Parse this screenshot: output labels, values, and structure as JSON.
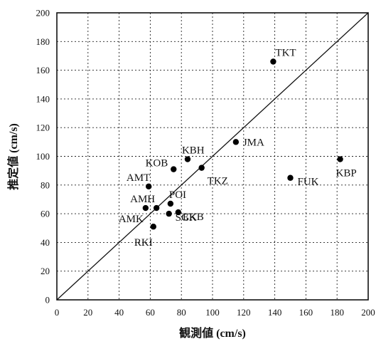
{
  "chart_data": {
    "type": "scatter",
    "xlabel": "観測値 (cm/s)",
    "ylabel": "推定値 (cm/s)",
    "xlim": [
      0,
      200
    ],
    "ylim": [
      0,
      200
    ],
    "x_ticks": [
      "0",
      "20",
      "40",
      "60",
      "80",
      "100",
      "120",
      "140",
      "160",
      "180",
      "200"
    ],
    "y_ticks": [
      "0",
      "20",
      "40",
      "60",
      "80",
      "100",
      "120",
      "140",
      "160",
      "180",
      "200"
    ],
    "grid": true,
    "reference_line": "y = x",
    "points": [
      {
        "label": "TKT",
        "x": 139,
        "y": 166
      },
      {
        "label": "JMA",
        "x": 115,
        "y": 110
      },
      {
        "label": "KBP",
        "x": 182,
        "y": 98
      },
      {
        "label": "FUK",
        "x": 150,
        "y": 85
      },
      {
        "label": "KBH",
        "x": 84,
        "y": 98
      },
      {
        "label": "KOB",
        "x": 75,
        "y": 91
      },
      {
        "label": "TKZ",
        "x": 93,
        "y": 92
      },
      {
        "label": "AMT",
        "x": 59,
        "y": 79
      },
      {
        "label": "POI",
        "x": 73,
        "y": 67
      },
      {
        "label": "AMH",
        "x": 64,
        "y": 64
      },
      {
        "label": "AMK",
        "x": 57,
        "y": 64
      },
      {
        "label": "EKB",
        "x": 78,
        "y": 61
      },
      {
        "label": "SGK",
        "x": 72,
        "y": 60
      },
      {
        "label": "RKI",
        "x": 62,
        "y": 51
      }
    ]
  }
}
